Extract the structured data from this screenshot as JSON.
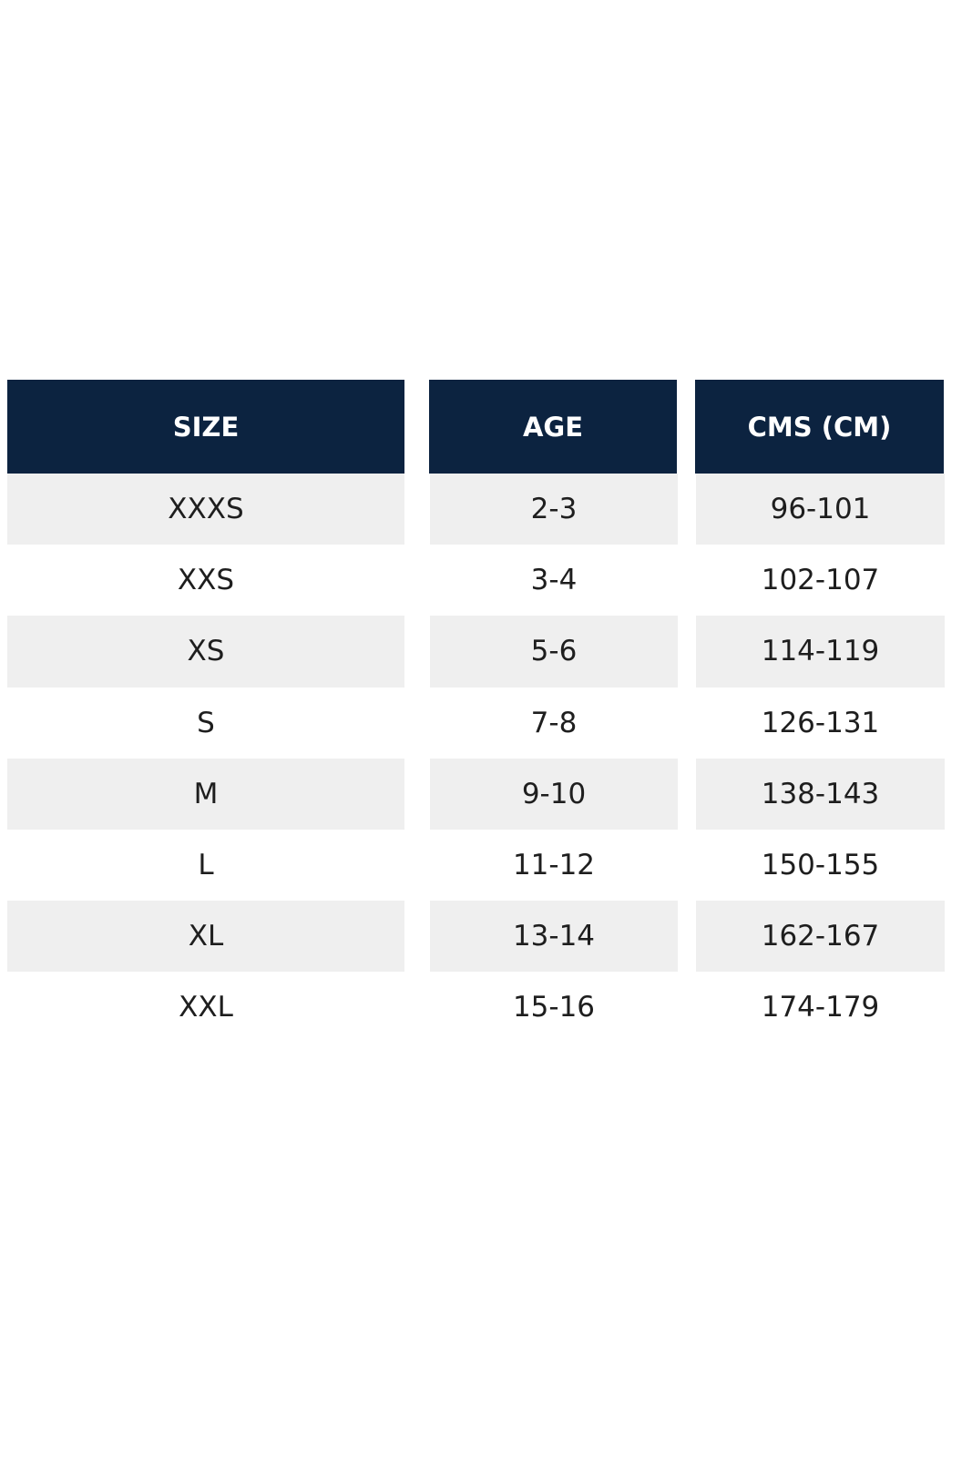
{
  "table": {
    "header": [
      "SIZE",
      "AGE",
      "CMS (CM)"
    ],
    "rows": [
      [
        "XXXS",
        "2-3",
        "96-101"
      ],
      [
        "XXS",
        "3-4",
        "102-107"
      ],
      [
        "XS",
        "5-6",
        "114-119"
      ],
      [
        "S",
        "7-8",
        "126-131"
      ],
      [
        "M",
        "9-10",
        "138-143"
      ],
      [
        "L",
        "11-12",
        "150-155"
      ],
      [
        "XL",
        "13-14",
        "162-167"
      ],
      [
        "XXL",
        "15-16",
        "174-179"
      ]
    ]
  }
}
